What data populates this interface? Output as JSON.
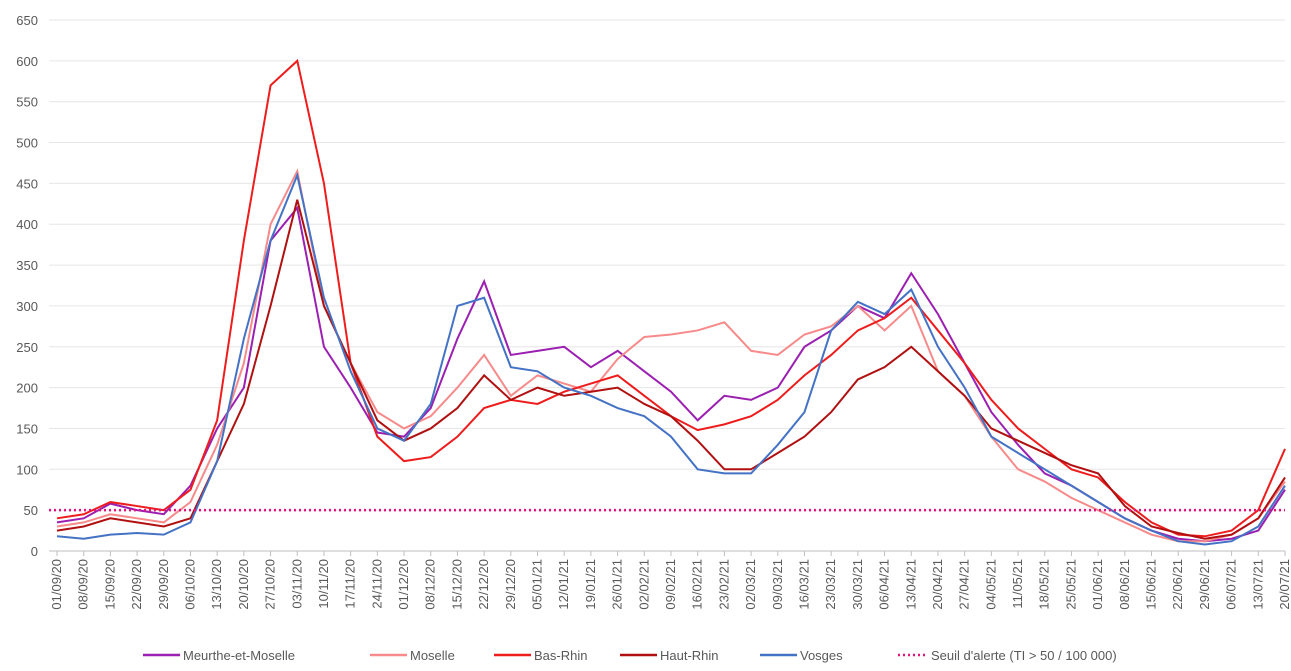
{
  "chart_data": {
    "type": "line",
    "categories": [
      "01/09/20",
      "08/09/20",
      "15/09/20",
      "22/09/20",
      "29/09/20",
      "06/10/20",
      "13/10/20",
      "20/10/20",
      "27/10/20",
      "03/11/20",
      "10/11/20",
      "17/11/20",
      "24/11/20",
      "01/12/20",
      "08/12/20",
      "15/12/20",
      "22/12/20",
      "29/12/20",
      "05/01/21",
      "12/01/21",
      "19/01/21",
      "26/01/21",
      "02/02/21",
      "09/02/21",
      "16/02/21",
      "23/02/21",
      "02/03/21",
      "09/03/21",
      "16/03/21",
      "23/03/21",
      "30/03/21",
      "06/04/21",
      "13/04/21",
      "20/04/21",
      "27/04/21",
      "04/05/21",
      "11/05/21",
      "18/05/21",
      "25/05/21",
      "01/06/21",
      "08/06/21",
      "15/06/21",
      "22/06/21",
      "29/06/21",
      "06/07/21",
      "13/07/21",
      "20/07/21"
    ],
    "series": [
      {
        "name": "Meurthe-et-Moselle",
        "color": "#9b1fb0",
        "values": [
          35,
          40,
          58,
          50,
          45,
          80,
          150,
          200,
          380,
          420,
          250,
          200,
          145,
          140,
          175,
          260,
          330,
          240,
          245,
          250,
          225,
          245,
          220,
          195,
          160,
          190,
          185,
          200,
          250,
          270,
          300,
          285,
          340,
          290,
          230,
          170,
          130,
          95,
          80,
          60,
          40,
          25,
          15,
          12,
          15,
          25,
          75
        ]
      },
      {
        "name": "Moselle",
        "color": "#f78a8a",
        "values": [
          30,
          35,
          45,
          40,
          35,
          60,
          130,
          230,
          400,
          465,
          300,
          230,
          170,
          150,
          165,
          200,
          240,
          190,
          215,
          205,
          195,
          235,
          262,
          265,
          270,
          280,
          245,
          240,
          265,
          275,
          300,
          270,
          300,
          220,
          190,
          140,
          100,
          85,
          65,
          50,
          35,
          20,
          12,
          12,
          20,
          40,
          85
        ]
      },
      {
        "name": "Bas-Rhin",
        "color": "#ee1c1c",
        "values": [
          40,
          45,
          60,
          55,
          50,
          75,
          160,
          380,
          570,
          600,
          450,
          230,
          140,
          110,
          115,
          140,
          175,
          185,
          180,
          195,
          205,
          215,
          190,
          165,
          148,
          155,
          165,
          185,
          215,
          240,
          270,
          285,
          310,
          270,
          230,
          185,
          150,
          125,
          100,
          90,
          60,
          35,
          20,
          18,
          25,
          50,
          125
        ]
      },
      {
        "name": "Haut-Rhin",
        "color": "#b01010",
        "values": [
          25,
          30,
          40,
          35,
          30,
          40,
          110,
          180,
          300,
          430,
          300,
          230,
          160,
          135,
          150,
          175,
          215,
          185,
          200,
          190,
          195,
          200,
          180,
          165,
          135,
          100,
          100,
          120,
          140,
          170,
          210,
          225,
          250,
          220,
          190,
          150,
          135,
          120,
          105,
          95,
          55,
          30,
          22,
          15,
          20,
          40,
          90
        ]
      },
      {
        "name": "Vosges",
        "color": "#4472c4",
        "values": [
          18,
          15,
          20,
          22,
          20,
          35,
          110,
          260,
          380,
          460,
          310,
          220,
          150,
          135,
          180,
          300,
          310,
          225,
          220,
          200,
          190,
          175,
          165,
          140,
          100,
          95,
          95,
          130,
          170,
          270,
          305,
          290,
          320,
          250,
          200,
          140,
          120,
          100,
          80,
          60,
          40,
          25,
          12,
          8,
          12,
          30,
          80
        ]
      }
    ],
    "threshold": {
      "name": "Seuil d'alerte (TI > 50 / 100 000)",
      "value": 50,
      "color": "#e0147a"
    },
    "ylim": [
      0,
      650
    ],
    "yticks": [
      0,
      50,
      100,
      150,
      200,
      250,
      300,
      350,
      400,
      450,
      500,
      550,
      600,
      650
    ],
    "grid": true
  }
}
